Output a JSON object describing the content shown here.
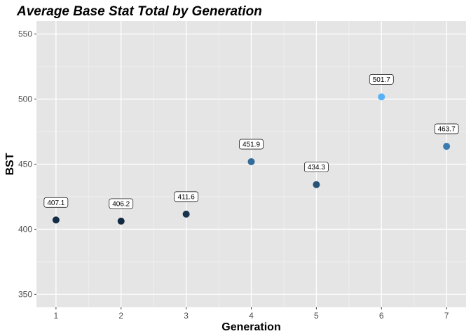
{
  "chart_data": {
    "type": "scatter",
    "title": "Average Base Stat Total by Generation",
    "xlabel": "Generation",
    "ylabel": "BST",
    "x": [
      1,
      2,
      3,
      4,
      5,
      6,
      7
    ],
    "x_tick_labels": [
      "1",
      "2",
      "3",
      "4",
      "5",
      "6",
      "7"
    ],
    "y": [
      407.1,
      406.2,
      411.6,
      451.9,
      434.3,
      501.7,
      463.7
    ],
    "data_labels": [
      "407.1",
      "406.2",
      "411.6",
      "451.9",
      "434.3",
      "501.7",
      "463.7"
    ],
    "y_tick_labels": [
      "350",
      "400",
      "450",
      "500",
      "550"
    ],
    "y_ticks": [
      350,
      400,
      450,
      500,
      550
    ],
    "xlim": [
      0.7,
      7.3
    ],
    "ylim": [
      340,
      560
    ],
    "grid": true,
    "point_color_scale": {
      "low": "#132b43",
      "high": "#56b1f7",
      "low_value": 406.2,
      "high_value": 501.7
    }
  },
  "colors": {
    "panel_background": "#e5e5e5",
    "grid_major": "#ffffff",
    "grid_minor": "#f0f0f0"
  }
}
